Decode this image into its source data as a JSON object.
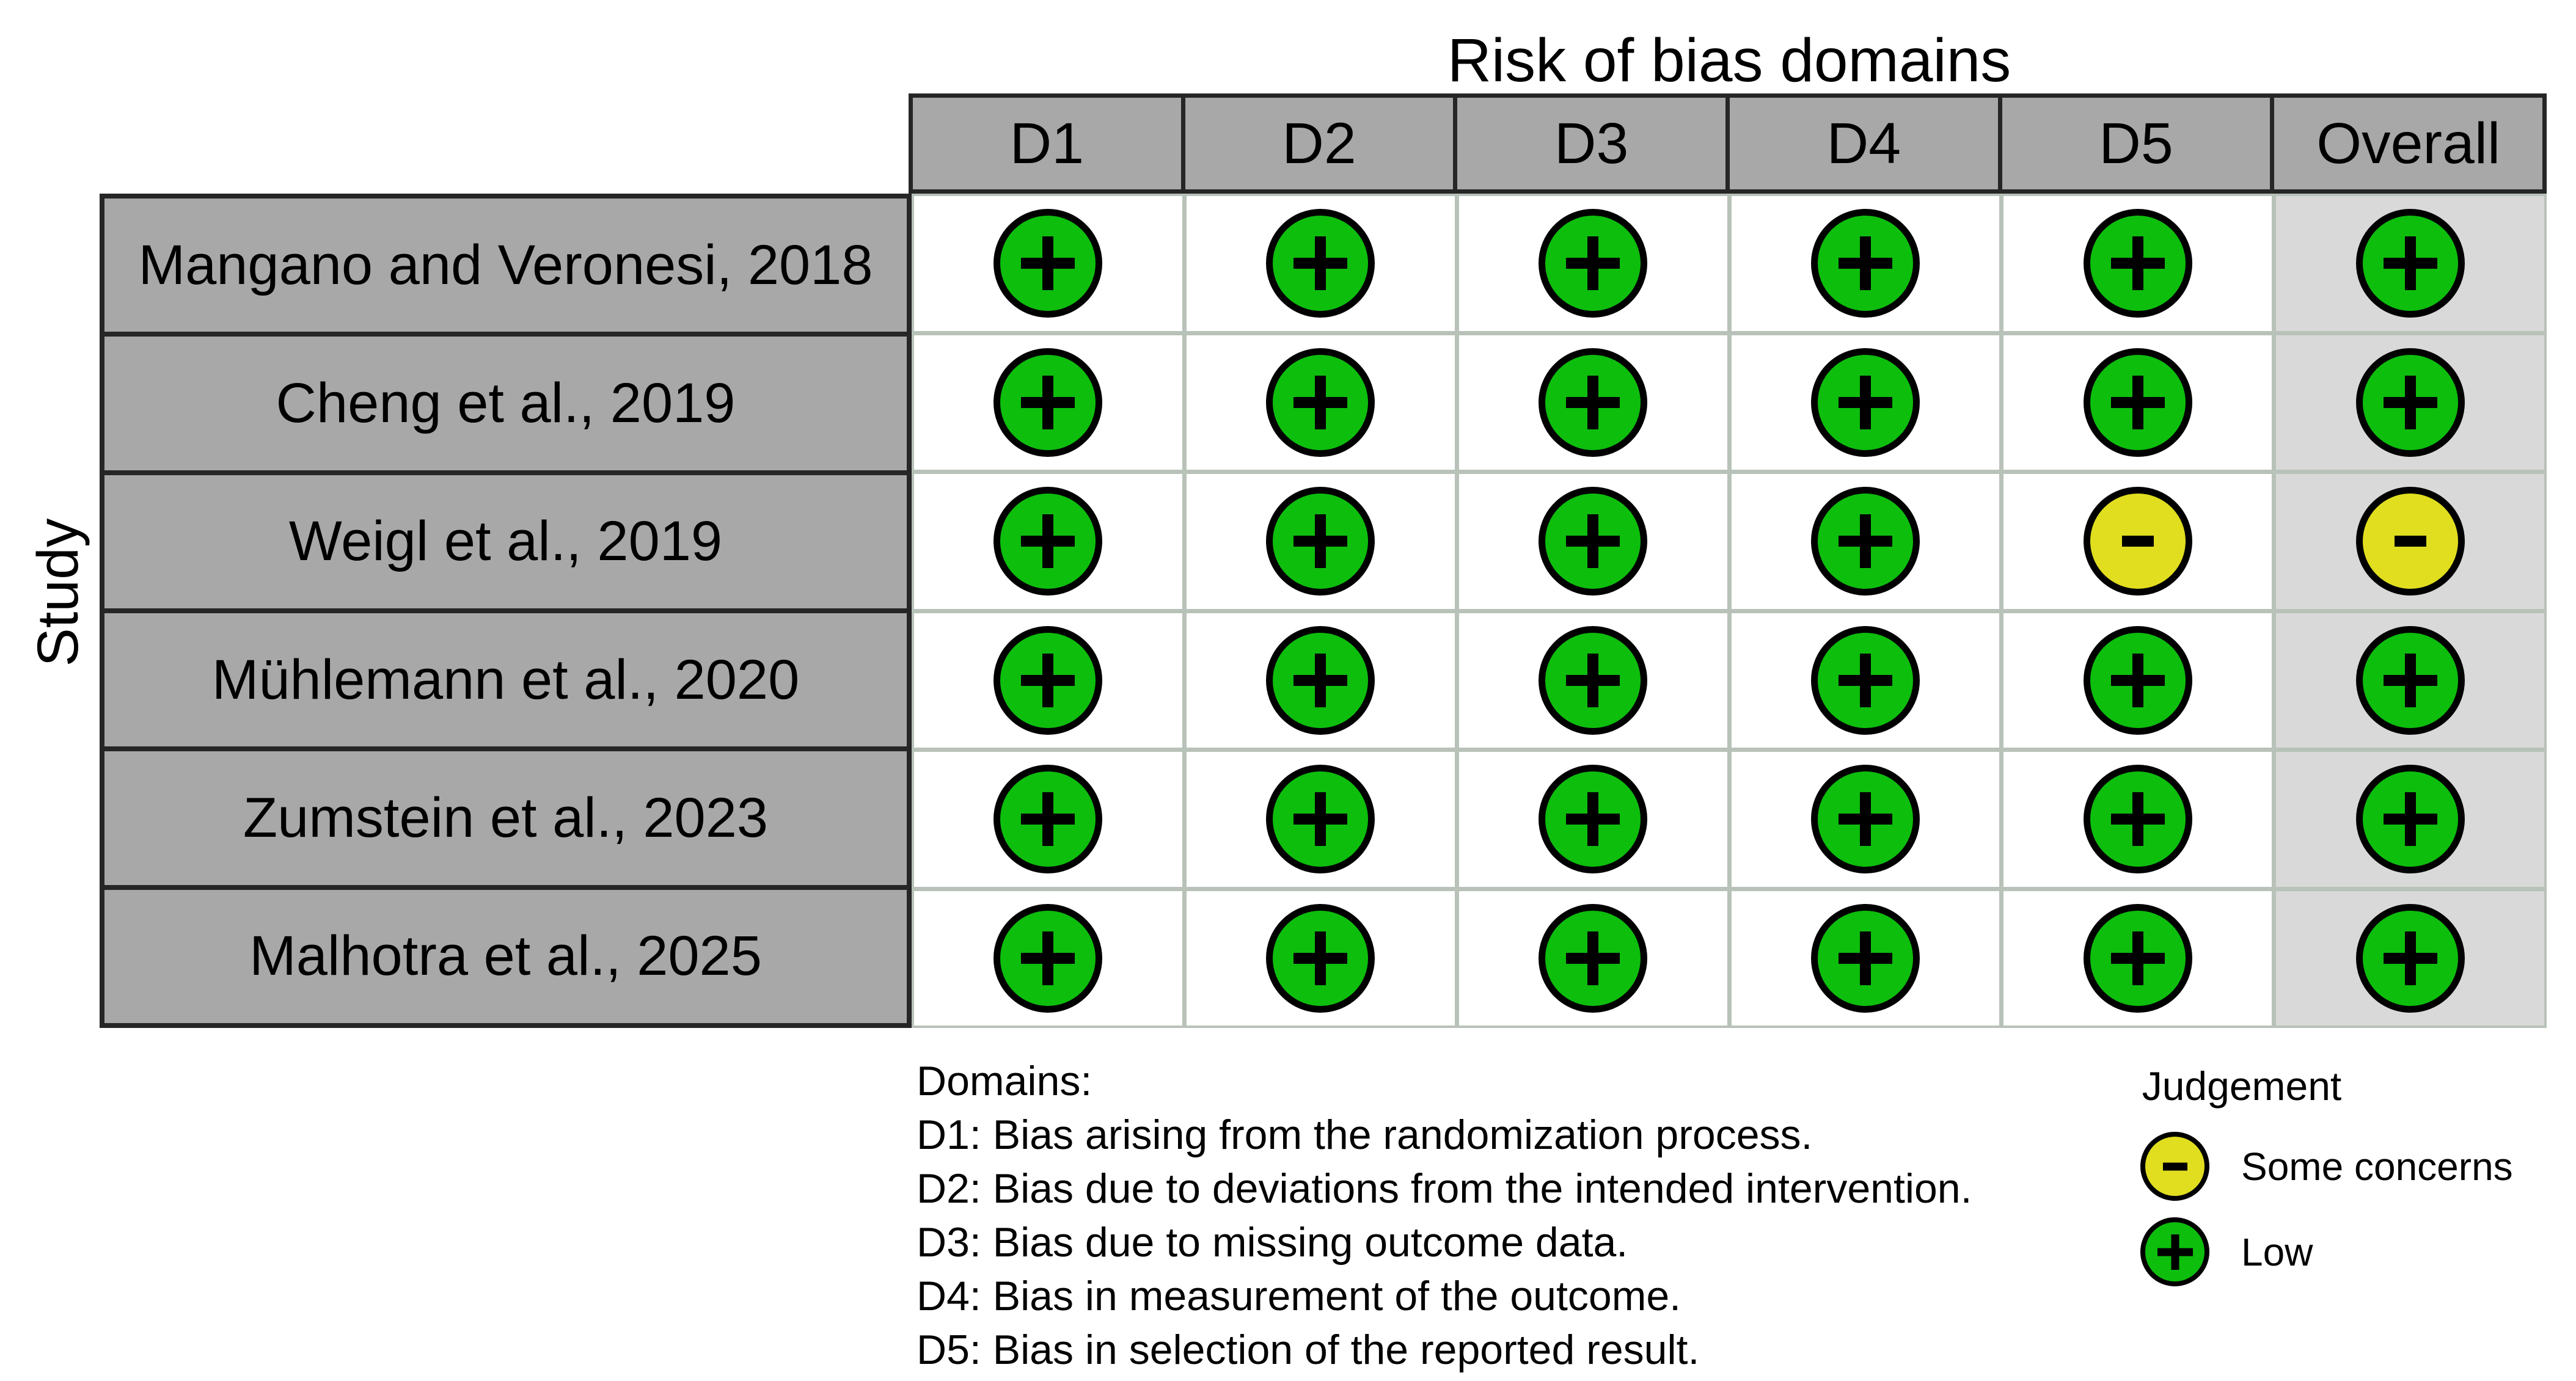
{
  "title": "Risk of bias domains",
  "axis": {
    "y_label": "Study"
  },
  "table": {
    "columns": [
      "D1",
      "D2",
      "D3",
      "D4",
      "D5",
      "Overall"
    ],
    "rows": [
      {
        "study": "Mangano and Veronesi, 2018",
        "judgements": [
          "low",
          "low",
          "low",
          "low",
          "low",
          "low"
        ]
      },
      {
        "study": "Cheng et al., 2019",
        "judgements": [
          "low",
          "low",
          "low",
          "low",
          "low",
          "low"
        ]
      },
      {
        "study": "Weigl et al., 2019",
        "judgements": [
          "low",
          "low",
          "low",
          "low",
          "some_concerns",
          "some_concerns"
        ]
      },
      {
        "study": "Mühlemann et al., 2020",
        "judgements": [
          "low",
          "low",
          "low",
          "low",
          "low",
          "low"
        ]
      },
      {
        "study": "Zumstein et al., 2023",
        "judgements": [
          "low",
          "low",
          "low",
          "low",
          "low",
          "low"
        ]
      },
      {
        "study": "Malhotra et al., 2025",
        "judgements": [
          "low",
          "low",
          "low",
          "low",
          "low",
          "low"
        ]
      }
    ]
  },
  "judgements": {
    "low": {
      "symbol": "+",
      "label": "Low",
      "color": "#0dbe0d"
    },
    "some_concerns": {
      "symbol": "-",
      "label": "Some concerns",
      "color": "#e0de1f"
    }
  },
  "footnote": {
    "heading": "Domains:",
    "lines": [
      "D1: Bias arising from the randomization process.",
      "D2: Bias due to deviations from the intended intervention.",
      "D3: Bias due to missing outcome data.",
      "D4: Bias in measurement of the outcome.",
      "D5: Bias in selection of the reported result."
    ]
  },
  "legend": {
    "title": "Judgement",
    "items": [
      {
        "judgement": "some_concerns",
        "label": "Some concerns"
      },
      {
        "judgement": "low",
        "label": "Low"
      }
    ]
  },
  "colors": {
    "header_fill": "#a8a8a8",
    "study_fill": "#a8a8a8",
    "overall_fill": "#d9d9d9",
    "grid_line": "#b8c2b8",
    "cell_border": "#262626",
    "low": "#0dbe0d",
    "some_concerns": "#e0de1f"
  },
  "chart_data": {
    "type": "heatmap",
    "title": "Risk of bias domains",
    "x_categories": [
      "D1",
      "D2",
      "D3",
      "D4",
      "D5",
      "Overall"
    ],
    "y_axis_label": "Study",
    "y_categories": [
      "Mangano and Veronesi, 2018",
      "Cheng et al., 2019",
      "Weigl et al., 2019",
      "Mühlemann et al., 2020",
      "Zumstein et al., 2023",
      "Malhotra et al., 2025"
    ],
    "values": [
      [
        "Low",
        "Low",
        "Low",
        "Low",
        "Low",
        "Low"
      ],
      [
        "Low",
        "Low",
        "Low",
        "Low",
        "Low",
        "Low"
      ],
      [
        "Low",
        "Low",
        "Low",
        "Low",
        "Some concerns",
        "Some concerns"
      ],
      [
        "Low",
        "Low",
        "Low",
        "Low",
        "Low",
        "Low"
      ],
      [
        "Low",
        "Low",
        "Low",
        "Low",
        "Low",
        "Low"
      ],
      [
        "Low",
        "Low",
        "Low",
        "Low",
        "Low",
        "Low"
      ]
    ],
    "legend_position": "bottom-right",
    "legend_entries": [
      {
        "label": "Some concerns",
        "symbol": "-",
        "color": "#e0de1f"
      },
      {
        "label": "Low",
        "symbol": "+",
        "color": "#0dbe0d"
      }
    ],
    "notes": "D1: randomization process; D2: deviations from intended intervention; D3: missing outcome data; D4: measurement of the outcome; D5: selection of the reported result."
  }
}
